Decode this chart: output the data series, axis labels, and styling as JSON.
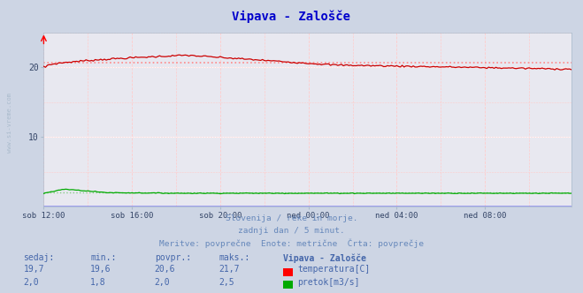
{
  "title": "Vipava - Zalošče",
  "fig_bg_color": "#cdd5e4",
  "plot_bg_color": "#e8e8f0",
  "xlim": [
    0,
    287
  ],
  "ylim": [
    0,
    25
  ],
  "yticks": [
    10,
    20
  ],
  "xtick_labels": [
    "sob 12:00",
    "sob 16:00",
    "sob 20:00",
    "ned 00:00",
    "ned 04:00",
    "ned 08:00"
  ],
  "xtick_positions": [
    0,
    48,
    96,
    144,
    192,
    240
  ],
  "temp_avg": 20.6,
  "flow_avg": 2.0,
  "temp_color": "#cc0000",
  "flow_color": "#00aa00",
  "avg_dotted_temp": "#ff8888",
  "avg_dotted_flow": "#88cc88",
  "grid_major_color": "#ffffff",
  "grid_minor_color": "#ffcccc",
  "footer_lines": [
    "Slovenija / reke in morje.",
    "zadnji dan / 5 minut.",
    "Meritve: povprečne  Enote: metrične  Črta: povprečje"
  ],
  "footer_color": "#6688bb",
  "table_header": [
    "sedaj:",
    "min.:",
    "povpr.:",
    "maks.:",
    "Vipava - Zalošče"
  ],
  "table_row1": [
    "19,7",
    "19,6",
    "20,6",
    "21,7",
    "temperatura[C]"
  ],
  "table_row2": [
    "2,0",
    "1,8",
    "2,0",
    "2,5",
    "pretok[m3/s]"
  ],
  "table_color": "#4466aa",
  "watermark": "www.si-vreme.com",
  "n_points": 288
}
